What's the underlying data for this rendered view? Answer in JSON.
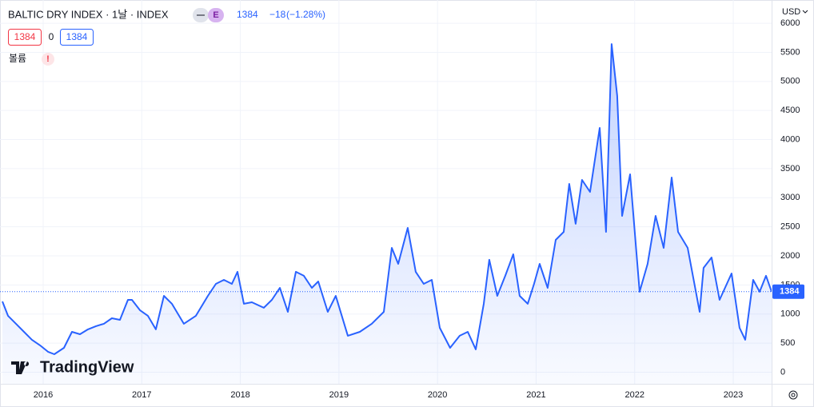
{
  "header": {
    "symbol": "BALTIC DRY INDEX · 1날 · INDEX",
    "badge": "E",
    "last": 1384,
    "change": {
      "value": -18,
      "label": "−18"
    },
    "change_pct": {
      "value": -1.28,
      "label": "(−1.28%)"
    },
    "bid": 1384,
    "spread": 0,
    "ask": 1384,
    "volume": "볼륨",
    "alert": "!",
    "currency": "USD",
    "brand": "TradingView"
  },
  "chart_data": {
    "type": "line",
    "grid": true,
    "xlim": [
      2015.562,
      2023.389
    ],
    "xticks": [
      2016,
      2017,
      2018,
      2019,
      2020,
      2021,
      2022,
      2023
    ],
    "ylim": [
      -200,
      6400
    ],
    "yticks": [
      0,
      500,
      1000,
      1500,
      2000,
      2500,
      3000,
      3500,
      4000,
      4500,
      5000,
      5500,
      6000
    ],
    "x": [
      2015.586,
      2015.643,
      2015.724,
      2015.805,
      2015.886,
      2015.968,
      2016.049,
      2016.113,
      2016.211,
      2016.292,
      2016.373,
      2016.454,
      2016.535,
      2016.616,
      2016.697,
      2016.779,
      2016.86,
      2016.9,
      2016.981,
      2017.062,
      2017.143,
      2017.225,
      2017.306,
      2017.427,
      2017.549,
      2017.671,
      2017.752,
      2017.833,
      2017.914,
      2017.971,
      2018.036,
      2018.117,
      2018.238,
      2018.32,
      2018.401,
      2018.482,
      2018.563,
      2018.644,
      2018.725,
      2018.79,
      2018.887,
      2018.968,
      2019.09,
      2019.212,
      2019.333,
      2019.455,
      2019.536,
      2019.601,
      2019.698,
      2019.779,
      2019.86,
      2019.942,
      2020.023,
      2020.128,
      2020.225,
      2020.307,
      2020.388,
      2020.469,
      2020.525,
      2020.606,
      2020.687,
      2020.768,
      2020.833,
      2020.915,
      2020.979,
      2021.036,
      2021.117,
      2021.199,
      2021.28,
      2021.336,
      2021.401,
      2021.466,
      2021.547,
      2021.645,
      2021.709,
      2021.766,
      2021.823,
      2021.872,
      2021.953,
      2022.05,
      2022.131,
      2022.212,
      2022.294,
      2022.375,
      2022.44,
      2022.537,
      2022.659,
      2022.699,
      2022.78,
      2022.861,
      2022.983,
      2023.064,
      2023.121,
      2023.202,
      2023.267,
      2023.332,
      2023.389
    ],
    "series": [
      {
        "name": "BALTIC DRY INDEX",
        "color": "#2962ff",
        "values": [
          1216,
          970,
          832,
          694,
          557,
          461,
          351,
          309,
          419,
          694,
          653,
          736,
          791,
          832,
          928,
          900,
          1244,
          1244,
          1066,
          970,
          736,
          1313,
          1176,
          832,
          970,
          1313,
          1519,
          1588,
          1519,
          1726,
          1176,
          1203,
          1107,
          1244,
          1450,
          1038,
          1726,
          1657,
          1450,
          1560,
          1038,
          1313,
          626,
          694,
          832,
          1038,
          2138,
          1863,
          2481,
          1726,
          1519,
          1588,
          763,
          419,
          626,
          694,
          392,
          1176,
          1932,
          1313,
          1657,
          2028,
          1313,
          1176,
          1519,
          1863,
          1450,
          2275,
          2413,
          3237,
          2551,
          3306,
          3100,
          4200,
          2413,
          5643,
          4750,
          2688,
          3402,
          1382,
          1863,
          2688,
          2138,
          3347,
          2413,
          2138,
          1038,
          1794,
          1973,
          1244,
          1698,
          763,
          557,
          1588,
          1382,
          1657,
          1384
        ]
      }
    ]
  }
}
